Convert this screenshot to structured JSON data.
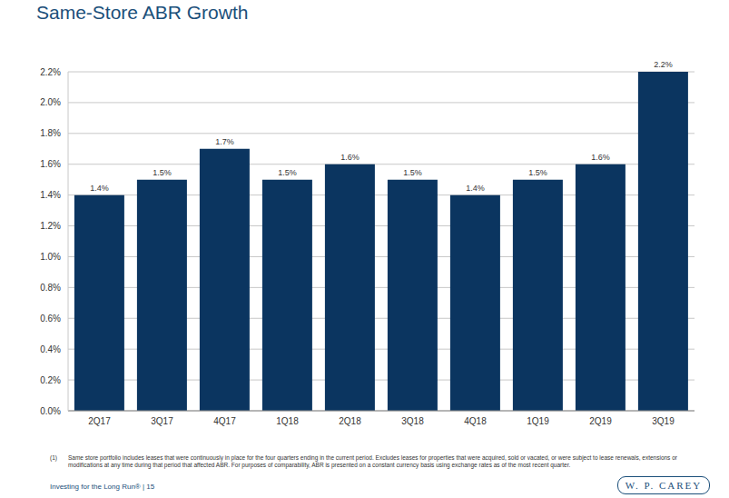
{
  "chart_data": {
    "type": "bar",
    "title": "Same-Store ABR Growth",
    "categories": [
      "2Q17",
      "3Q17",
      "4Q17",
      "1Q18",
      "2Q18",
      "3Q18",
      "4Q18",
      "1Q19",
      "2Q19",
      "3Q19"
    ],
    "values": [
      1.4,
      1.5,
      1.7,
      1.5,
      1.6,
      1.5,
      1.4,
      1.5,
      1.6,
      2.2
    ],
    "value_labels": [
      "1.4%",
      "1.5%",
      "1.7%",
      "1.5%",
      "1.6%",
      "1.5%",
      "1.4%",
      "1.5%",
      "1.6%",
      "2.2%"
    ],
    "color": "#0b3560",
    "ylim": [
      0,
      2.2
    ],
    "yticks": [
      {
        "value": 0,
        "label": "0.0%"
      },
      {
        "value": 0.2,
        "label": "0.2%"
      },
      {
        "value": 0.4,
        "label": "0.4%"
      },
      {
        "value": 0.6,
        "label": "0.6%"
      },
      {
        "value": 0.8,
        "label": "0.8%"
      },
      {
        "value": 1.0,
        "label": "1.0%"
      },
      {
        "value": 1.2,
        "label": "1.2%"
      },
      {
        "value": 1.4,
        "label": "1.4%"
      },
      {
        "value": 1.6,
        "label": "1.6%"
      },
      {
        "value": 1.8,
        "label": "1.8%"
      },
      {
        "value": 2.0,
        "label": "2.0%"
      },
      {
        "value": 2.2,
        "label": "2.2%"
      }
    ],
    "grid": true,
    "data_labels": true,
    "footnote_marker": "(1)",
    "footnote": "Same store portfolio includes leases that were continuously in place for the four quarters ending in the current period. Excludes leases for properties that were acquired, sold or vacated, or were subject to lease renewals, extensions or modifications at any time during that period that affected ABR. For purposes of comparability, ABR is presented on a constant currency basis using exchange rates as of the most recent quarter.",
    "footer": "Investing for the Long Run® | 15",
    "logo": "W. P. CAREY"
  }
}
